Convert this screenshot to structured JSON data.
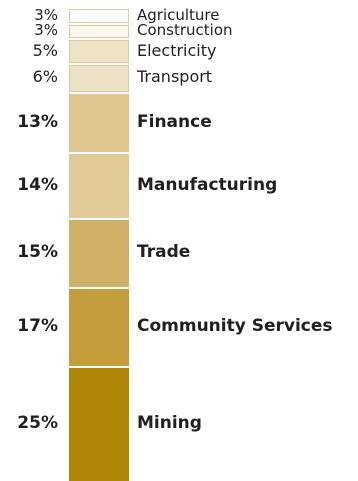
{
  "chart_data": {
    "type": "bar",
    "orientation": "stacked-vertical",
    "categories": [
      "Agriculture",
      "Construction",
      "Electricity",
      "Transport",
      "Finance",
      "Manufacturing",
      "Trade",
      "Community Services",
      "Mining"
    ],
    "values": [
      3,
      3,
      5,
      6,
      13,
      14,
      15,
      17,
      25
    ],
    "value_labels": [
      "3%",
      "3%",
      "5%",
      "6%",
      "13%",
      "14%",
      "15%",
      "17%",
      "25%"
    ],
    "bold": [
      false,
      false,
      false,
      false,
      true,
      true,
      true,
      true,
      true
    ],
    "colors": [
      "#ffffff",
      "#fbf7ec",
      "#efe3c6",
      "#ede1c5",
      "#e0c68d",
      "#e2ca98",
      "#d1b165",
      "#c39d3b",
      "#af8507"
    ],
    "title": "",
    "xlabel": "",
    "ylabel": ""
  }
}
